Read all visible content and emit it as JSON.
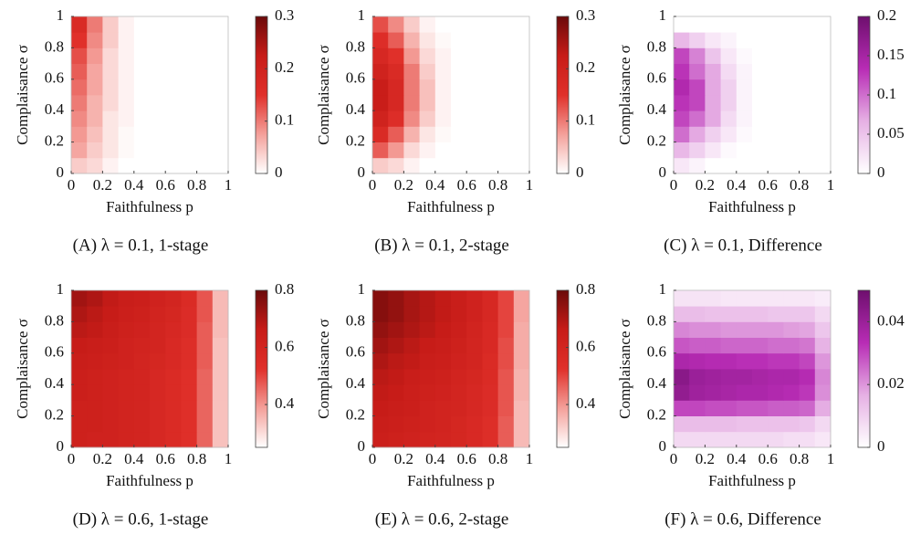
{
  "chart_data": [
    {
      "type": "heatmap",
      "title": "(A) λ = 0.1, 1-stage",
      "xlabel": "Faithfulness p",
      "ylabel": "Complaisance σ",
      "xlim": [
        0,
        1
      ],
      "ylim": [
        0,
        1
      ],
      "xticks": [
        0,
        0.2,
        0.4,
        0.6,
        0.8,
        1
      ],
      "yticks": [
        0,
        0.2,
        0.4,
        0.6,
        0.8,
        1
      ],
      "colorbar_lim": [
        0,
        0.3
      ],
      "colorbar_ticks": [
        0,
        0.1,
        0.2,
        0.3
      ],
      "colors": [
        "#ffffff",
        "#f4a09a",
        "#e0302a",
        "#c71c18",
        "#6b0a0a"
      ],
      "values": [
        [
          0.04,
          0.03,
          0.01,
          0,
          0,
          0,
          0,
          0,
          0,
          0
        ],
        [
          0.07,
          0.04,
          0.02,
          0.005,
          0,
          0,
          0,
          0,
          0,
          0
        ],
        [
          0.08,
          0.05,
          0.02,
          0.005,
          0,
          0,
          0,
          0,
          0,
          0
        ],
        [
          0.09,
          0.06,
          0.02,
          0.01,
          0,
          0,
          0,
          0,
          0,
          0
        ],
        [
          0.1,
          0.06,
          0.03,
          0.01,
          0,
          0,
          0,
          0,
          0,
          0
        ],
        [
          0.11,
          0.07,
          0.03,
          0.01,
          0,
          0,
          0,
          0,
          0,
          0
        ],
        [
          0.12,
          0.07,
          0.03,
          0.01,
          0,
          0,
          0,
          0,
          0,
          0
        ],
        [
          0.13,
          0.08,
          0.03,
          0.01,
          0,
          0,
          0,
          0,
          0,
          0
        ],
        [
          0.15,
          0.09,
          0.04,
          0.01,
          0,
          0,
          0,
          0,
          0,
          0
        ],
        [
          0.17,
          0.1,
          0.04,
          0.01,
          0,
          0,
          0,
          0,
          0,
          0
        ]
      ]
    },
    {
      "type": "heatmap",
      "title": "(B) λ = 0.1, 2-stage",
      "xlabel": "Faithfulness p",
      "ylabel": "Complaisance σ",
      "xlim": [
        0,
        1
      ],
      "ylim": [
        0,
        1
      ],
      "xticks": [
        0,
        0.2,
        0.4,
        0.6,
        0.8,
        1
      ],
      "yticks": [
        0,
        0.2,
        0.4,
        0.6,
        0.8,
        1
      ],
      "colorbar_lim": [
        0,
        0.3
      ],
      "colorbar_ticks": [
        0,
        0.1,
        0.2,
        0.3
      ],
      "colors": [
        "#ffffff",
        "#f4a09a",
        "#e0302a",
        "#c71c18",
        "#6b0a0a"
      ],
      "values": [
        [
          0.04,
          0.03,
          0.01,
          0,
          0,
          0,
          0,
          0,
          0,
          0
        ],
        [
          0.12,
          0.08,
          0.03,
          0.01,
          0,
          0,
          0,
          0,
          0,
          0
        ],
        [
          0.17,
          0.12,
          0.06,
          0.02,
          0.005,
          0,
          0,
          0,
          0,
          0
        ],
        [
          0.2,
          0.16,
          0.09,
          0.04,
          0.01,
          0,
          0,
          0,
          0,
          0
        ],
        [
          0.22,
          0.18,
          0.1,
          0.05,
          0.01,
          0,
          0,
          0,
          0,
          0
        ],
        [
          0.22,
          0.18,
          0.1,
          0.05,
          0.01,
          0,
          0,
          0,
          0,
          0
        ],
        [
          0.2,
          0.17,
          0.1,
          0.04,
          0.01,
          0,
          0,
          0,
          0,
          0
        ],
        [
          0.18,
          0.15,
          0.08,
          0.03,
          0.01,
          0,
          0,
          0,
          0,
          0
        ],
        [
          0.16,
          0.12,
          0.06,
          0.02,
          0.005,
          0,
          0,
          0,
          0,
          0
        ],
        [
          0.13,
          0.09,
          0.04,
          0.01,
          0,
          0,
          0,
          0,
          0,
          0
        ]
      ]
    },
    {
      "type": "heatmap",
      "title": "(C) λ = 0.1, Difference",
      "xlabel": "Faithfulness p",
      "ylabel": "Complaisance σ",
      "xlim": [
        0,
        1
      ],
      "ylim": [
        0,
        1
      ],
      "xticks": [
        0,
        0.2,
        0.4,
        0.6,
        0.8,
        1
      ],
      "yticks": [
        0,
        0.2,
        0.4,
        0.6,
        0.8,
        1
      ],
      "colorbar_lim": [
        0,
        0.2
      ],
      "colorbar_ticks": [
        0,
        0.05,
        0.1,
        0.15,
        0.2
      ],
      "colors": [
        "#ffffff",
        "#e6b0e4",
        "#b82cb5",
        "#6e0f6e"
      ],
      "values": [
        [
          0.02,
          0.01,
          0,
          0,
          0,
          0,
          0,
          0,
          0,
          0
        ],
        [
          0.06,
          0.04,
          0.02,
          0.005,
          0,
          0,
          0,
          0,
          0,
          0
        ],
        [
          0.1,
          0.07,
          0.04,
          0.02,
          0.005,
          0,
          0,
          0,
          0,
          0
        ],
        [
          0.12,
          0.1,
          0.07,
          0.03,
          0.01,
          0,
          0,
          0,
          0,
          0
        ],
        [
          0.13,
          0.12,
          0.07,
          0.04,
          0.01,
          0,
          0,
          0,
          0,
          0
        ],
        [
          0.14,
          0.12,
          0.07,
          0.04,
          0.01,
          0,
          0,
          0,
          0,
          0
        ],
        [
          0.13,
          0.1,
          0.07,
          0.03,
          0.01,
          0,
          0,
          0,
          0,
          0
        ],
        [
          0.12,
          0.09,
          0.05,
          0.02,
          0.005,
          0,
          0,
          0,
          0,
          0
        ],
        [
          0.06,
          0.04,
          0.02,
          0.01,
          0,
          0,
          0,
          0,
          0,
          0
        ],
        [
          0,
          0,
          0,
          0,
          0,
          0,
          0,
          0,
          0,
          0
        ]
      ]
    },
    {
      "type": "heatmap",
      "title": "(D) λ = 0.6, 1-stage",
      "xlabel": "Faithfulness p",
      "ylabel": "Complaisance σ",
      "xlim": [
        0,
        1
      ],
      "ylim": [
        0,
        1
      ],
      "xticks": [
        0,
        0.2,
        0.4,
        0.6,
        0.8,
        1
      ],
      "yticks": [
        0,
        0.2,
        0.4,
        0.6,
        0.8,
        1
      ],
      "colorbar_lim": [
        0.25,
        0.8
      ],
      "colorbar_ticks": [
        0.4,
        0.6,
        0.8
      ],
      "colors": [
        "#ffffff",
        "#f4a09a",
        "#e0302a",
        "#c71c18",
        "#6b0a0a"
      ],
      "values": [
        [
          0.63,
          0.62,
          0.62,
          0.61,
          0.6,
          0.58,
          0.56,
          0.53,
          0.46,
          0.34
        ],
        [
          0.63,
          0.63,
          0.62,
          0.61,
          0.6,
          0.58,
          0.56,
          0.53,
          0.46,
          0.34
        ],
        [
          0.63,
          0.63,
          0.62,
          0.61,
          0.6,
          0.58,
          0.56,
          0.53,
          0.46,
          0.34
        ],
        [
          0.64,
          0.63,
          0.62,
          0.61,
          0.6,
          0.58,
          0.56,
          0.53,
          0.46,
          0.34
        ],
        [
          0.64,
          0.63,
          0.62,
          0.61,
          0.6,
          0.58,
          0.56,
          0.53,
          0.46,
          0.34
        ],
        [
          0.65,
          0.64,
          0.63,
          0.62,
          0.6,
          0.59,
          0.57,
          0.54,
          0.47,
          0.34
        ],
        [
          0.66,
          0.65,
          0.64,
          0.62,
          0.61,
          0.6,
          0.57,
          0.54,
          0.47,
          0.34
        ],
        [
          0.68,
          0.67,
          0.65,
          0.63,
          0.62,
          0.6,
          0.58,
          0.55,
          0.47,
          0.35
        ],
        [
          0.7,
          0.68,
          0.66,
          0.64,
          0.63,
          0.61,
          0.59,
          0.55,
          0.48,
          0.35
        ],
        [
          0.72,
          0.7,
          0.67,
          0.65,
          0.64,
          0.62,
          0.6,
          0.56,
          0.48,
          0.35
        ]
      ]
    },
    {
      "type": "heatmap",
      "title": "(E) λ = 0.6, 2-stage",
      "xlabel": "Faithfulness p",
      "ylabel": "Complaisance σ",
      "xlim": [
        0,
        1
      ],
      "ylim": [
        0,
        1
      ],
      "xticks": [
        0,
        0.2,
        0.4,
        0.6,
        0.8,
        1
      ],
      "yticks": [
        0,
        0.2,
        0.4,
        0.6,
        0.8,
        1
      ],
      "colorbar_lim": [
        0.25,
        0.8
      ],
      "colorbar_ticks": [
        0.4,
        0.6,
        0.8
      ],
      "colors": [
        "#ffffff",
        "#f4a09a",
        "#e0302a",
        "#c71c18",
        "#6b0a0a"
      ],
      "values": [
        [
          0.64,
          0.63,
          0.62,
          0.61,
          0.6,
          0.59,
          0.57,
          0.54,
          0.47,
          0.35
        ],
        [
          0.65,
          0.64,
          0.63,
          0.62,
          0.61,
          0.59,
          0.57,
          0.54,
          0.47,
          0.35
        ],
        [
          0.66,
          0.65,
          0.64,
          0.62,
          0.61,
          0.6,
          0.58,
          0.55,
          0.48,
          0.35
        ],
        [
          0.67,
          0.66,
          0.64,
          0.63,
          0.62,
          0.6,
          0.58,
          0.55,
          0.48,
          0.36
        ],
        [
          0.68,
          0.67,
          0.65,
          0.64,
          0.63,
          0.61,
          0.59,
          0.56,
          0.48,
          0.36
        ],
        [
          0.7,
          0.68,
          0.67,
          0.65,
          0.64,
          0.62,
          0.6,
          0.56,
          0.49,
          0.37
        ],
        [
          0.72,
          0.7,
          0.68,
          0.66,
          0.65,
          0.63,
          0.6,
          0.57,
          0.49,
          0.37
        ],
        [
          0.74,
          0.72,
          0.7,
          0.68,
          0.66,
          0.64,
          0.61,
          0.57,
          0.5,
          0.37
        ],
        [
          0.76,
          0.74,
          0.71,
          0.69,
          0.67,
          0.65,
          0.62,
          0.58,
          0.5,
          0.38
        ],
        [
          0.76,
          0.74,
          0.71,
          0.69,
          0.67,
          0.65,
          0.62,
          0.58,
          0.5,
          0.38
        ]
      ]
    },
    {
      "type": "heatmap",
      "title": "(F) λ = 0.6, Difference",
      "xlabel": "Faithfulness p",
      "ylabel": "Complaisance σ",
      "xlim": [
        0,
        1
      ],
      "ylim": [
        0,
        1
      ],
      "xticks": [
        0,
        0.2,
        0.4,
        0.6,
        0.8,
        1
      ],
      "yticks": [
        0,
        0.2,
        0.4,
        0.6,
        0.8,
        1
      ],
      "colorbar_lim": [
        0,
        0.05
      ],
      "colorbar_ticks": [
        0,
        0.02,
        0.04
      ],
      "colors": [
        "#ffffff",
        "#e6b0e4",
        "#b82cb5",
        "#6e0f6e"
      ],
      "values": [
        [
          0.008,
          0.008,
          0.008,
          0.008,
          0.008,
          0.008,
          0.008,
          0.007,
          0.007,
          0.005
        ],
        [
          0.014,
          0.014,
          0.014,
          0.014,
          0.013,
          0.013,
          0.013,
          0.013,
          0.012,
          0.008
        ],
        [
          0.03,
          0.03,
          0.029,
          0.029,
          0.028,
          0.028,
          0.027,
          0.027,
          0.026,
          0.017
        ],
        [
          0.042,
          0.039,
          0.038,
          0.037,
          0.036,
          0.036,
          0.035,
          0.034,
          0.032,
          0.021
        ],
        [
          0.044,
          0.04,
          0.039,
          0.038,
          0.038,
          0.037,
          0.036,
          0.036,
          0.034,
          0.022
        ],
        [
          0.036,
          0.035,
          0.034,
          0.034,
          0.033,
          0.033,
          0.032,
          0.032,
          0.03,
          0.02
        ],
        [
          0.028,
          0.027,
          0.027,
          0.026,
          0.026,
          0.026,
          0.025,
          0.025,
          0.024,
          0.016
        ],
        [
          0.022,
          0.021,
          0.021,
          0.02,
          0.02,
          0.02,
          0.02,
          0.019,
          0.018,
          0.012
        ],
        [
          0.014,
          0.014,
          0.013,
          0.013,
          0.013,
          0.013,
          0.012,
          0.012,
          0.012,
          0.008
        ],
        [
          0.006,
          0.006,
          0.006,
          0.005,
          0.005,
          0.005,
          0.005,
          0.005,
          0.005,
          0.004
        ]
      ]
    }
  ]
}
